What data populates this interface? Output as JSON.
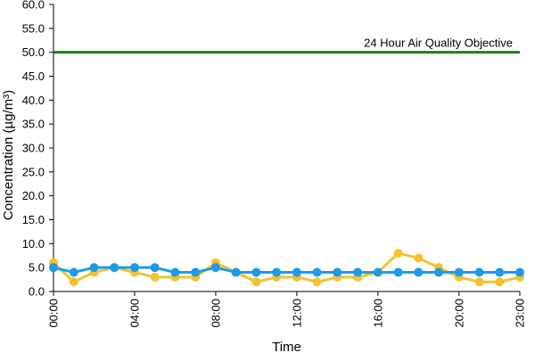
{
  "chart_data": {
    "type": "line",
    "title": "",
    "xlabel": "Time",
    "ylabel": "Concentration (µg/m³)",
    "ylim": [
      0,
      60
    ],
    "y_ticks": [
      "0.0",
      "5.0",
      "10.0",
      "15.0",
      "20.0",
      "25.0",
      "30.0",
      "35.0",
      "40.0",
      "45.0",
      "50.0",
      "55.0",
      "60.0"
    ],
    "x_tick_labels": [
      "00:00",
      "04:00",
      "08:00",
      "12:00",
      "16:00",
      "20:00",
      "23:00"
    ],
    "x_tick_hours": [
      0,
      4,
      8,
      12,
      16,
      20,
      23
    ],
    "x": [
      0,
      1,
      2,
      3,
      4,
      5,
      6,
      7,
      8,
      9,
      10,
      11,
      12,
      13,
      14,
      15,
      16,
      17,
      18,
      19,
      20,
      21,
      22,
      23
    ],
    "grid": false,
    "legend": "none",
    "series": [
      {
        "color": "#F2C230",
        "values": [
          6,
          2,
          4,
          5,
          4,
          3,
          3,
          3,
          6,
          4,
          2,
          3,
          3,
          2,
          3,
          3,
          4,
          8,
          7,
          5,
          3,
          2,
          2,
          3
        ]
      },
      {
        "color": "#1E9BE8",
        "values": [
          5,
          4,
          5,
          5,
          5,
          5,
          4,
          4,
          5,
          4,
          4,
          4,
          4,
          4,
          4,
          4,
          4,
          4,
          4,
          4,
          4,
          4,
          4,
          4
        ]
      }
    ],
    "reference_line": {
      "value": 50,
      "label": "24 Hour Air Quality Objective",
      "color": "#1A7F1A"
    }
  }
}
